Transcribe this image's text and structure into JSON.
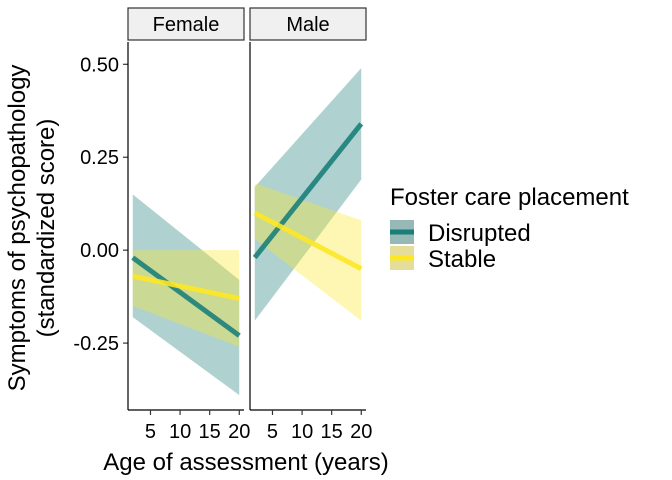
{
  "chart_data": {
    "type": "line",
    "panels": [
      {
        "label": "Female",
        "series": [
          {
            "name": "Disrupted",
            "x": [
              2,
              20
            ],
            "y": [
              -0.02,
              -0.23
            ],
            "lower": [
              -0.18,
              -0.39
            ],
            "upper": [
              0.15,
              -0.08
            ]
          },
          {
            "name": "Stable",
            "x": [
              2,
              20
            ],
            "y": [
              -0.07,
              -0.13
            ],
            "lower": [
              -0.15,
              -0.26
            ],
            "upper": [
              0.0,
              0.0
            ]
          }
        ]
      },
      {
        "label": "Male",
        "series": [
          {
            "name": "Disrupted",
            "x": [
              2,
              20
            ],
            "y": [
              -0.02,
              0.34
            ],
            "lower": [
              -0.19,
              0.19
            ],
            "upper": [
              0.17,
              0.49
            ]
          },
          {
            "name": "Stable",
            "x": [
              2,
              20
            ],
            "y": [
              0.1,
              -0.05
            ],
            "lower": [
              0.03,
              -0.19
            ],
            "upper": [
              0.18,
              0.08
            ]
          }
        ]
      }
    ],
    "xlabel": "Age of assessment (years)",
    "ylabel_lines": [
      "Symptoms of psychopathology",
      "(standardized score)"
    ],
    "x_ticks": [
      5,
      10,
      15,
      20
    ],
    "y_ticks": [
      0.5,
      0.25,
      0.0,
      -0.25
    ],
    "y_tick_labels": [
      "0.50",
      "0.25",
      "0.00",
      "-0.25"
    ],
    "xlim": [
      1.2,
      20.8
    ],
    "ylim": [
      -0.43,
      0.56
    ],
    "legend": {
      "title": "Foster care placement",
      "position": "right",
      "entries": [
        "Disrupted",
        "Stable"
      ]
    },
    "colors": {
      "Disrupted": "#1b7f79",
      "Stable": "#fde725",
      "strip_fill": "#f0f0f0"
    },
    "ribbon_opacity": 0.35,
    "grid": false
  }
}
